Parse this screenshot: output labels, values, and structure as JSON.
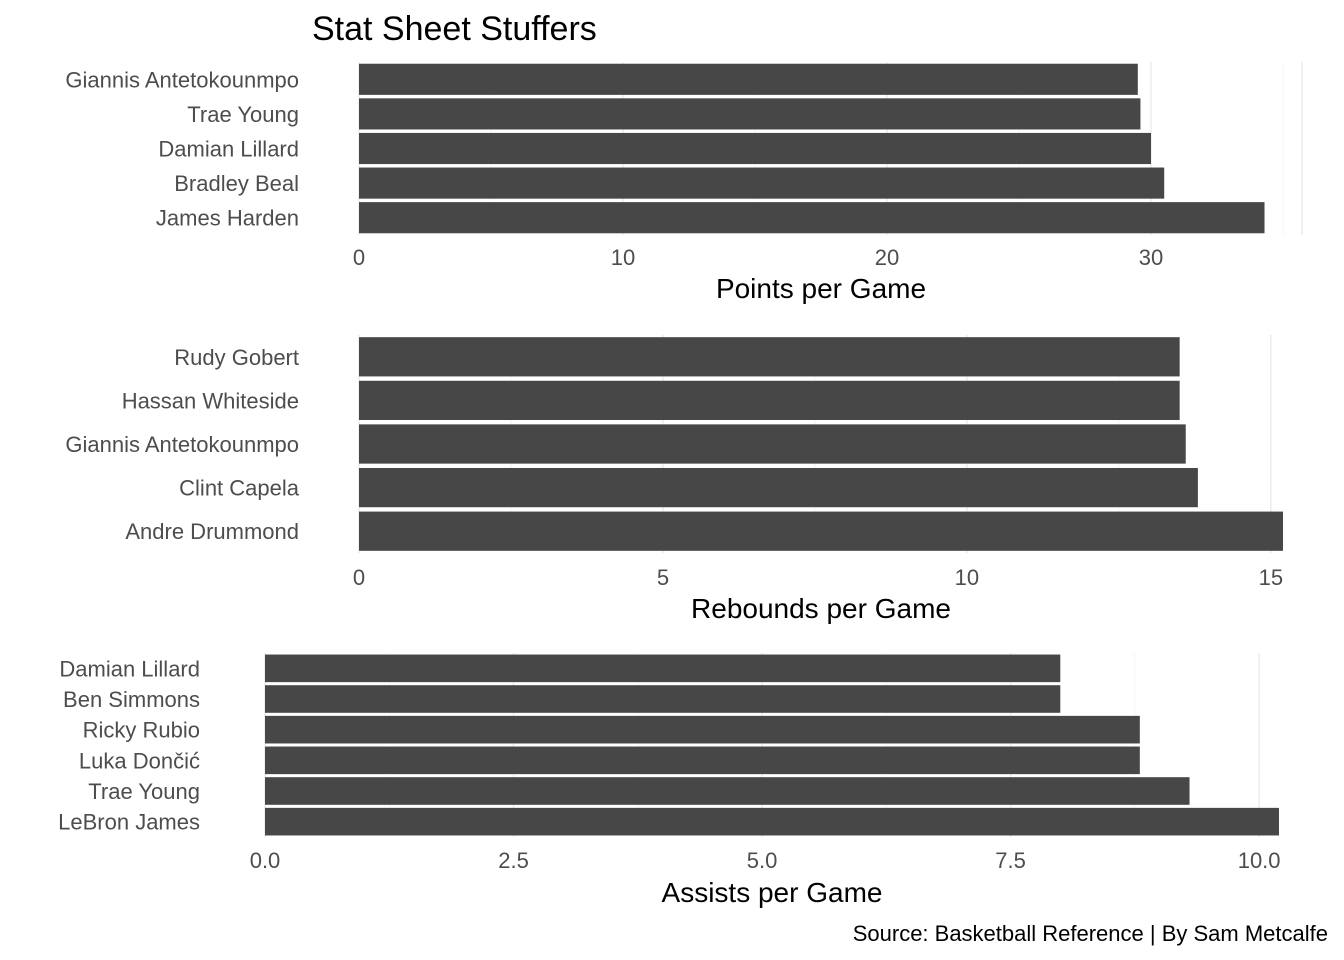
{
  "title": "Stat Sheet Stuffers",
  "caption": "Source: Basketball Reference | By Sam Metcalfe",
  "chart_data": [
    {
      "type": "bar",
      "orientation": "horizontal",
      "categories": [
        "Giannis Antetokounmpo",
        "Trae Young",
        "Damian Lillard",
        "Bradley Beal",
        "James Harden"
      ],
      "values": [
        29.5,
        29.6,
        30.0,
        30.5,
        34.3
      ],
      "xlabel": "Points per Game",
      "ticks": [
        0,
        10,
        20,
        30
      ],
      "tick_labels": [
        "0",
        "10",
        "20",
        "30"
      ],
      "xlim": [
        0,
        35
      ],
      "bar_color": "#474747",
      "grid": true
    },
    {
      "type": "bar",
      "orientation": "horizontal",
      "categories": [
        "Rudy Gobert",
        "Hassan Whiteside",
        "Giannis Antetokounmpo",
        "Clint Capela",
        "Andre Drummond"
      ],
      "values": [
        13.5,
        13.5,
        13.6,
        13.8,
        15.2
      ],
      "xlabel": "Rebounds per Game",
      "ticks": [
        0,
        5,
        10,
        15
      ],
      "tick_labels": [
        "0",
        "5",
        "10",
        "15"
      ],
      "xlim": [
        0,
        15.2
      ],
      "bar_color": "#474747",
      "grid": true
    },
    {
      "type": "bar",
      "orientation": "horizontal",
      "categories": [
        "Damian Lillard",
        "Ben Simmons",
        "Ricky Rubio",
        "Luka Dončić",
        "Trae Young",
        "LeBron James"
      ],
      "values": [
        8.0,
        8.0,
        8.8,
        8.8,
        9.3,
        10.2
      ],
      "xlabel": "Assists per Game",
      "ticks": [
        0,
        2.5,
        5,
        7.5,
        10
      ],
      "tick_labels": [
        "0.0",
        "2.5",
        "5.0",
        "7.5",
        "10.0"
      ],
      "xlim": [
        0,
        10.2
      ],
      "bar_color": "#474747",
      "grid": true
    }
  ]
}
